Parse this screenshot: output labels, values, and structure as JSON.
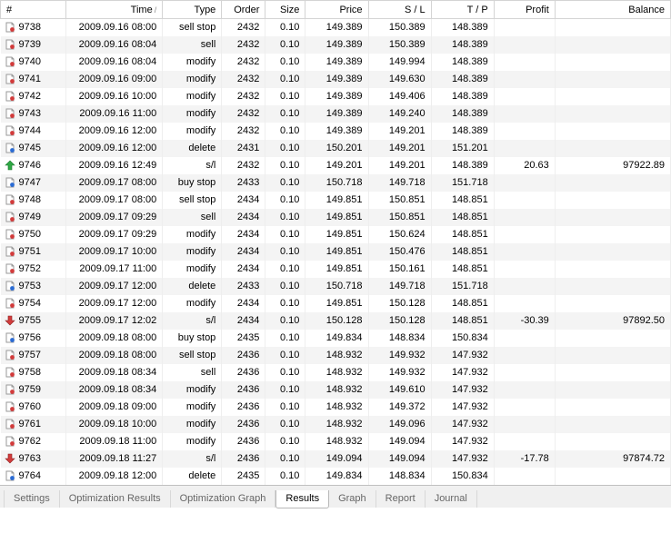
{
  "columns": {
    "id": "#",
    "time": "Time",
    "type": "Type",
    "order": "Order",
    "size": "Size",
    "price": "Price",
    "sl": "S / L",
    "tp": "T / P",
    "profit": "Profit",
    "balance": "Balance"
  },
  "sort_indicator": "/",
  "icon_colors": {
    "red": {
      "paper": "#ffffff",
      "border": "#9a9a9a",
      "dot": "#d23b3b"
    },
    "blue": {
      "paper": "#ffffff",
      "border": "#9a9a9a",
      "dot": "#2a6bd4"
    },
    "green": {
      "arrow": "#2fa844",
      "shadow": "#1a7a2e"
    },
    "down": {
      "arrow": "#d23b3b",
      "shadow": "#8a1f1f"
    }
  },
  "rows": [
    {
      "icon": "red",
      "id": "9738",
      "time": "2009.09.16 08:00",
      "type": "sell stop",
      "order": "2432",
      "size": "0.10",
      "price": "149.389",
      "sl": "150.389",
      "tp": "148.389",
      "profit": "",
      "balance": ""
    },
    {
      "icon": "red",
      "id": "9739",
      "time": "2009.09.16 08:04",
      "type": "sell",
      "order": "2432",
      "size": "0.10",
      "price": "149.389",
      "sl": "150.389",
      "tp": "148.389",
      "profit": "",
      "balance": ""
    },
    {
      "icon": "red",
      "id": "9740",
      "time": "2009.09.16 08:04",
      "type": "modify",
      "order": "2432",
      "size": "0.10",
      "price": "149.389",
      "sl": "149.994",
      "tp": "148.389",
      "profit": "",
      "balance": ""
    },
    {
      "icon": "red",
      "id": "9741",
      "time": "2009.09.16 09:00",
      "type": "modify",
      "order": "2432",
      "size": "0.10",
      "price": "149.389",
      "sl": "149.630",
      "tp": "148.389",
      "profit": "",
      "balance": ""
    },
    {
      "icon": "red",
      "id": "9742",
      "time": "2009.09.16 10:00",
      "type": "modify",
      "order": "2432",
      "size": "0.10",
      "price": "149.389",
      "sl": "149.406",
      "tp": "148.389",
      "profit": "",
      "balance": ""
    },
    {
      "icon": "red",
      "id": "9743",
      "time": "2009.09.16 11:00",
      "type": "modify",
      "order": "2432",
      "size": "0.10",
      "price": "149.389",
      "sl": "149.240",
      "tp": "148.389",
      "profit": "",
      "balance": ""
    },
    {
      "icon": "red",
      "id": "9744",
      "time": "2009.09.16 12:00",
      "type": "modify",
      "order": "2432",
      "size": "0.10",
      "price": "149.389",
      "sl": "149.201",
      "tp": "148.389",
      "profit": "",
      "balance": ""
    },
    {
      "icon": "blue",
      "id": "9745",
      "time": "2009.09.16 12:00",
      "type": "delete",
      "order": "2431",
      "size": "0.10",
      "price": "150.201",
      "sl": "149.201",
      "tp": "151.201",
      "profit": "",
      "balance": ""
    },
    {
      "icon": "green",
      "id": "9746",
      "time": "2009.09.16 12:49",
      "type": "s/l",
      "order": "2432",
      "size": "0.10",
      "price": "149.201",
      "sl": "149.201",
      "tp": "148.389",
      "profit": "20.63",
      "balance": "97922.89"
    },
    {
      "icon": "blue",
      "id": "9747",
      "time": "2009.09.17 08:00",
      "type": "buy stop",
      "order": "2433",
      "size": "0.10",
      "price": "150.718",
      "sl": "149.718",
      "tp": "151.718",
      "profit": "",
      "balance": ""
    },
    {
      "icon": "red",
      "id": "9748",
      "time": "2009.09.17 08:00",
      "type": "sell stop",
      "order": "2434",
      "size": "0.10",
      "price": "149.851",
      "sl": "150.851",
      "tp": "148.851",
      "profit": "",
      "balance": ""
    },
    {
      "icon": "red",
      "id": "9749",
      "time": "2009.09.17 09:29",
      "type": "sell",
      "order": "2434",
      "size": "0.10",
      "price": "149.851",
      "sl": "150.851",
      "tp": "148.851",
      "profit": "",
      "balance": ""
    },
    {
      "icon": "red",
      "id": "9750",
      "time": "2009.09.17 09:29",
      "type": "modify",
      "order": "2434",
      "size": "0.10",
      "price": "149.851",
      "sl": "150.624",
      "tp": "148.851",
      "profit": "",
      "balance": ""
    },
    {
      "icon": "red",
      "id": "9751",
      "time": "2009.09.17 10:00",
      "type": "modify",
      "order": "2434",
      "size": "0.10",
      "price": "149.851",
      "sl": "150.476",
      "tp": "148.851",
      "profit": "",
      "balance": ""
    },
    {
      "icon": "red",
      "id": "9752",
      "time": "2009.09.17 11:00",
      "type": "modify",
      "order": "2434",
      "size": "0.10",
      "price": "149.851",
      "sl": "150.161",
      "tp": "148.851",
      "profit": "",
      "balance": ""
    },
    {
      "icon": "blue",
      "id": "9753",
      "time": "2009.09.17 12:00",
      "type": "delete",
      "order": "2433",
      "size": "0.10",
      "price": "150.718",
      "sl": "149.718",
      "tp": "151.718",
      "profit": "",
      "balance": ""
    },
    {
      "icon": "red",
      "id": "9754",
      "time": "2009.09.17 12:00",
      "type": "modify",
      "order": "2434",
      "size": "0.10",
      "price": "149.851",
      "sl": "150.128",
      "tp": "148.851",
      "profit": "",
      "balance": ""
    },
    {
      "icon": "down",
      "id": "9755",
      "time": "2009.09.17 12:02",
      "type": "s/l",
      "order": "2434",
      "size": "0.10",
      "price": "150.128",
      "sl": "150.128",
      "tp": "148.851",
      "profit": "-30.39",
      "balance": "97892.50"
    },
    {
      "icon": "blue",
      "id": "9756",
      "time": "2009.09.18 08:00",
      "type": "buy stop",
      "order": "2435",
      "size": "0.10",
      "price": "149.834",
      "sl": "148.834",
      "tp": "150.834",
      "profit": "",
      "balance": ""
    },
    {
      "icon": "red",
      "id": "9757",
      "time": "2009.09.18 08:00",
      "type": "sell stop",
      "order": "2436",
      "size": "0.10",
      "price": "148.932",
      "sl": "149.932",
      "tp": "147.932",
      "profit": "",
      "balance": ""
    },
    {
      "icon": "red",
      "id": "9758",
      "time": "2009.09.18 08:34",
      "type": "sell",
      "order": "2436",
      "size": "0.10",
      "price": "148.932",
      "sl": "149.932",
      "tp": "147.932",
      "profit": "",
      "balance": ""
    },
    {
      "icon": "red",
      "id": "9759",
      "time": "2009.09.18 08:34",
      "type": "modify",
      "order": "2436",
      "size": "0.10",
      "price": "148.932",
      "sl": "149.610",
      "tp": "147.932",
      "profit": "",
      "balance": ""
    },
    {
      "icon": "red",
      "id": "9760",
      "time": "2009.09.18 09:00",
      "type": "modify",
      "order": "2436",
      "size": "0.10",
      "price": "148.932",
      "sl": "149.372",
      "tp": "147.932",
      "profit": "",
      "balance": ""
    },
    {
      "icon": "red",
      "id": "9761",
      "time": "2009.09.18 10:00",
      "type": "modify",
      "order": "2436",
      "size": "0.10",
      "price": "148.932",
      "sl": "149.096",
      "tp": "147.932",
      "profit": "",
      "balance": ""
    },
    {
      "icon": "red",
      "id": "9762",
      "time": "2009.09.18 11:00",
      "type": "modify",
      "order": "2436",
      "size": "0.10",
      "price": "148.932",
      "sl": "149.094",
      "tp": "147.932",
      "profit": "",
      "balance": ""
    },
    {
      "icon": "down",
      "id": "9763",
      "time": "2009.09.18 11:27",
      "type": "s/l",
      "order": "2436",
      "size": "0.10",
      "price": "149.094",
      "sl": "149.094",
      "tp": "147.932",
      "profit": "-17.78",
      "balance": "97874.72"
    },
    {
      "icon": "blue",
      "id": "9764",
      "time": "2009.09.18 12:00",
      "type": "delete",
      "order": "2435",
      "size": "0.10",
      "price": "149.834",
      "sl": "148.834",
      "tp": "150.834",
      "profit": "",
      "balance": ""
    }
  ],
  "tabs": [
    {
      "label": "Settings",
      "active": false
    },
    {
      "label": "Optimization Results",
      "active": false
    },
    {
      "label": "Optimization Graph",
      "active": false
    },
    {
      "label": "Results",
      "active": true
    },
    {
      "label": "Graph",
      "active": false
    },
    {
      "label": "Report",
      "active": false
    },
    {
      "label": "Journal",
      "active": false
    }
  ]
}
